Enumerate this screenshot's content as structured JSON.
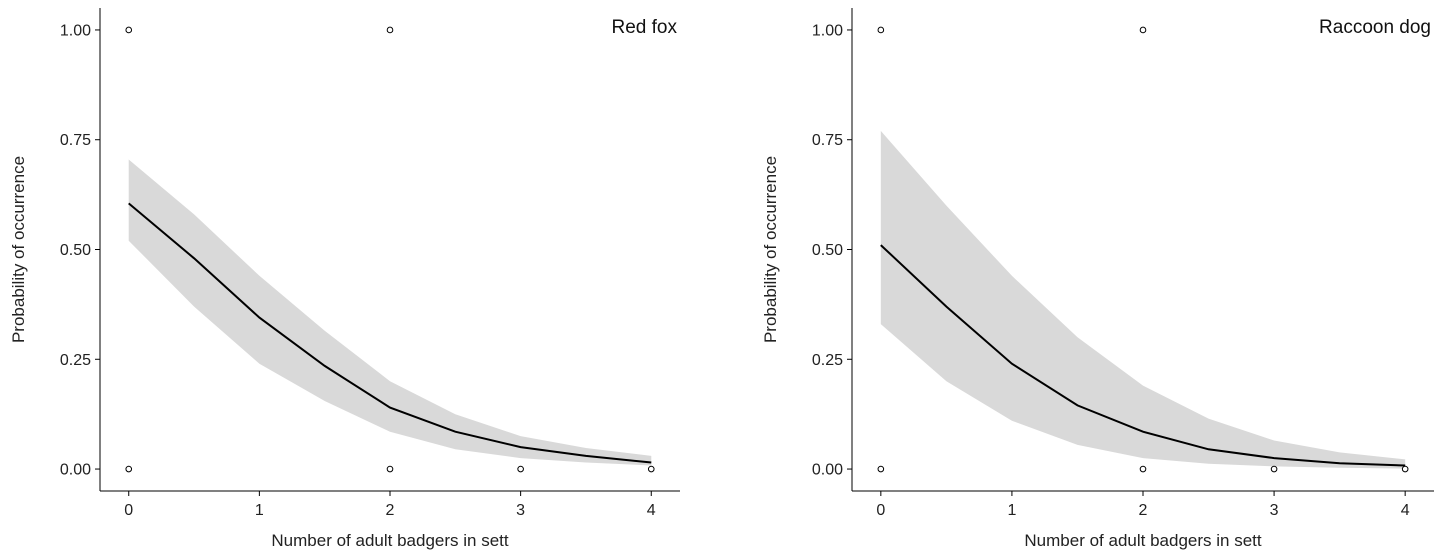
{
  "colors": {
    "line": "#000000",
    "ribbon": "#d9d9d9",
    "point_stroke": "#000000",
    "axis": "#000000"
  },
  "chart_data": [
    {
      "type": "line",
      "title": "Red fox",
      "xlabel": "Number of adult badgers in sett",
      "ylabel": "Probability of occurrence",
      "xlim": [
        -0.22,
        4.22
      ],
      "ylim": [
        -0.05,
        1.05
      ],
      "xticks": [
        0,
        1,
        2,
        3,
        4
      ],
      "xtick_labels": [
        "0",
        "1",
        "2",
        "3",
        "4"
      ],
      "yticks": [
        0,
        0.25,
        0.5,
        0.75,
        1
      ],
      "ytick_labels": [
        "0.00",
        "0.25",
        "0.50",
        "0.75",
        "1.00"
      ],
      "grid": false,
      "series": [
        {
          "x": [
            0,
            0.5,
            1,
            1.5,
            2,
            2.5,
            3,
            3.5,
            4
          ],
          "y": [
            0.605,
            0.48,
            0.345,
            0.235,
            0.14,
            0.085,
            0.05,
            0.03,
            0.015
          ],
          "lower": [
            0.52,
            0.37,
            0.24,
            0.155,
            0.085,
            0.045,
            0.025,
            0.015,
            0.008
          ],
          "upper": [
            0.705,
            0.58,
            0.44,
            0.315,
            0.2,
            0.125,
            0.075,
            0.048,
            0.03
          ]
        }
      ],
      "points": {
        "x": [
          0,
          2,
          0,
          2,
          3,
          4
        ],
        "y": [
          1,
          1,
          0,
          0,
          0,
          0
        ]
      }
    },
    {
      "type": "line",
      "title": "Raccoon dog",
      "xlabel": "Number of adult badgers in sett",
      "ylabel": "Probability of occurrence",
      "xlim": [
        -0.22,
        4.22
      ],
      "ylim": [
        -0.05,
        1.05
      ],
      "xticks": [
        0,
        1,
        2,
        3,
        4
      ],
      "xtick_labels": [
        "0",
        "1",
        "2",
        "3",
        "4"
      ],
      "yticks": [
        0,
        0.25,
        0.5,
        0.75,
        1
      ],
      "ytick_labels": [
        "0.00",
        "0.25",
        "0.50",
        "0.75",
        "1.00"
      ],
      "grid": false,
      "series": [
        {
          "x": [
            0,
            0.5,
            1,
            1.5,
            2,
            2.5,
            3,
            3.5,
            4
          ],
          "y": [
            0.51,
            0.37,
            0.24,
            0.145,
            0.085,
            0.045,
            0.025,
            0.013,
            0.008
          ],
          "lower": [
            0.33,
            0.2,
            0.11,
            0.055,
            0.025,
            0.012,
            0.006,
            0.003,
            0.001
          ],
          "upper": [
            0.77,
            0.6,
            0.44,
            0.3,
            0.19,
            0.115,
            0.065,
            0.038,
            0.022
          ]
        }
      ],
      "points": {
        "x": [
          0,
          2,
          0,
          2,
          3,
          4
        ],
        "y": [
          1,
          1,
          0,
          0,
          0,
          0
        ]
      }
    }
  ]
}
